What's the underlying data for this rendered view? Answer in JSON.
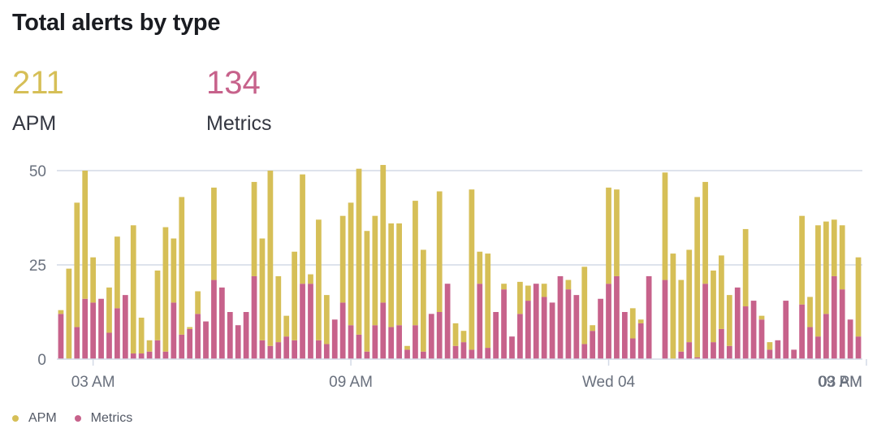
{
  "panel": {
    "title": "Total alerts by type",
    "stats": [
      {
        "value": "211",
        "label": "APM"
      },
      {
        "value": "134",
        "label": "Metrics"
      }
    ]
  },
  "colors": {
    "apm": "#d6bf57",
    "metrics": "#c7628b",
    "grid": "#d3dae6",
    "axis": "#69707d"
  },
  "legend": [
    {
      "name": "APM",
      "color": "#d6bf57"
    },
    {
      "name": "Metrics",
      "color": "#c7628b"
    }
  ],
  "chart_data": {
    "type": "bar",
    "stacked": true,
    "ylim": [
      0,
      50
    ],
    "yticks": [
      0,
      25,
      50
    ],
    "xticks": [
      {
        "label": "03 AM",
        "index": 4
      },
      {
        "label": "09 AM",
        "index": 36
      },
      {
        "label": "Wed 04",
        "index": 68
      },
      {
        "label": "09 PM",
        "index": 100
      },
      {
        "label": "03 AM",
        "index": 132
      }
    ],
    "grid": true,
    "series": [
      {
        "name": "Metrics",
        "color": "#c7628b",
        "values": [
          12,
          0,
          8.5,
          16,
          15,
          16,
          7,
          13.5,
          17,
          1.5,
          1.5,
          2,
          5,
          2,
          15,
          6.5,
          8,
          12,
          10,
          21,
          19,
          12.5,
          9,
          12.5,
          22,
          5,
          3.5,
          4.5,
          6,
          5,
          20,
          20,
          5,
          4,
          10.5,
          15,
          9,
          6.5,
          2,
          9,
          15,
          8.5,
          9,
          2.5,
          9,
          2,
          12,
          12.5,
          20,
          3.5,
          4.5,
          2.5,
          20,
          3,
          12.5,
          18.5,
          6,
          12,
          15.5,
          20,
          16.5,
          15,
          22,
          18.5,
          17,
          4,
          7.5,
          16,
          20,
          22,
          12.5,
          5.5,
          9.5,
          22,
          0,
          21,
          0,
          2,
          4.5,
          0.5,
          20,
          4.5,
          8,
          3.5,
          19,
          14,
          15.5,
          10.5,
          2.5,
          5,
          15.5,
          2.5,
          14.5,
          8.5,
          6,
          12,
          22,
          18.5,
          10.5,
          6
        ]
      },
      {
        "name": "APM",
        "color": "#d6bf57",
        "values": [
          1,
          24,
          33,
          34,
          12,
          0,
          12,
          19,
          0,
          34,
          9.5,
          3,
          18.5,
          33,
          17,
          36.5,
          0.5,
          6,
          0,
          24.5,
          0,
          0,
          0,
          0,
          25,
          27,
          46.5,
          17.5,
          5.5,
          23.5,
          29,
          2.5,
          32,
          13,
          0,
          23,
          32.5,
          44,
          32,
          29,
          36.5,
          27.5,
          27,
          1,
          33,
          27,
          0,
          32,
          0,
          6,
          3,
          42.5,
          8.5,
          25,
          0,
          1.5,
          0,
          8.5,
          4,
          0,
          3.5,
          0,
          0,
          2.5,
          0,
          20.5,
          1.5,
          0,
          25.5,
          23,
          0,
          8,
          1,
          0,
          0,
          28.5,
          28,
          19,
          24.5,
          42.5,
          27,
          19,
          19.5,
          13.5,
          0,
          20.5,
          0,
          1,
          2,
          0,
          0,
          0,
          23.5,
          8,
          29.5,
          24.5,
          15,
          17,
          0,
          21
        ]
      }
    ]
  }
}
